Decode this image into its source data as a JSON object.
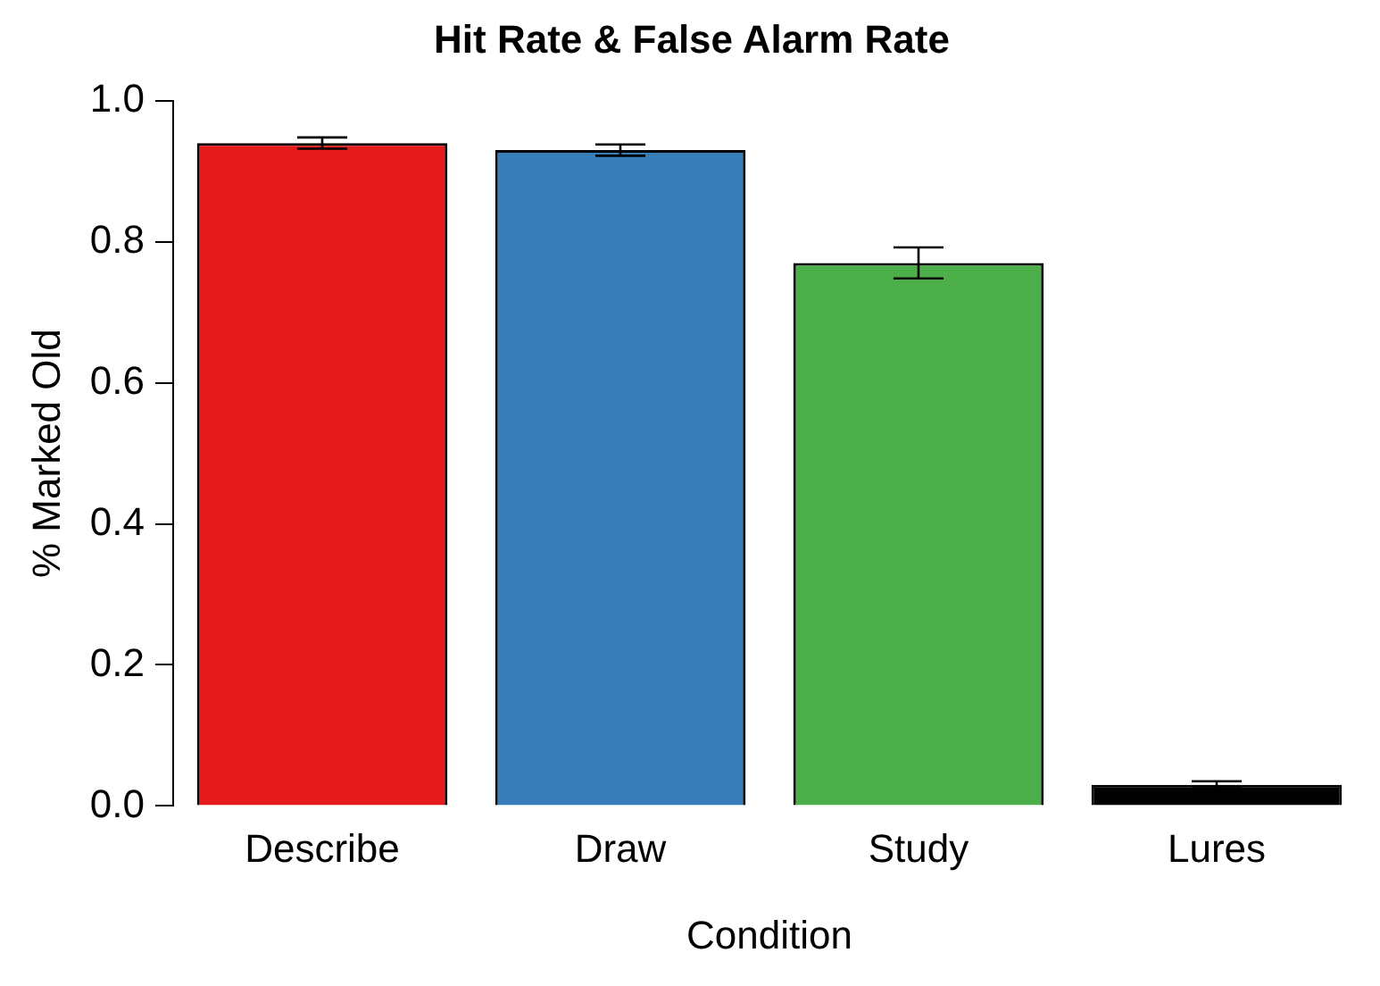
{
  "chart_data": {
    "type": "bar",
    "title": "Hit Rate & False Alarm Rate",
    "xlabel": "Condition",
    "ylabel": "% Marked Old",
    "categories": [
      "Describe",
      "Draw",
      "Study",
      "Lures"
    ],
    "values": [
      0.94,
      0.93,
      0.77,
      0.03
    ],
    "colors": [
      "#e41a1c",
      "#377eb8",
      "#4daf4a",
      "#000000"
    ],
    "errors": [
      0.008,
      0.008,
      0.022,
      0.005
    ],
    "ylim": [
      0,
      1
    ],
    "yticks": [
      {
        "value": 0,
        "label": "0.0"
      },
      {
        "value": 0.2,
        "label": "0.2"
      },
      {
        "value": 0.4,
        "label": "0.4"
      },
      {
        "value": 0.6,
        "label": "0.6"
      },
      {
        "value": 0.8,
        "label": "0.8"
      },
      {
        "value": 1,
        "label": "1.0"
      }
    ],
    "grid": false,
    "legend": false
  }
}
